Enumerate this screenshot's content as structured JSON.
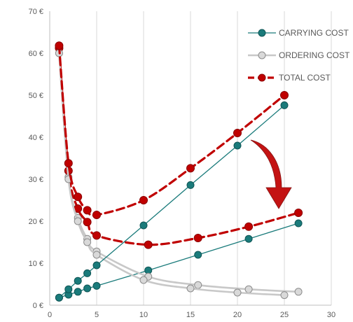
{
  "chart_data": {
    "type": "line",
    "title": "",
    "xlabel": "",
    "ylabel": "",
    "xlim": [
      0,
      30
    ],
    "ylim": [
      0,
      70
    ],
    "x_ticks": [
      {
        "value": 0,
        "label": "0"
      },
      {
        "value": 5,
        "label": "5"
      },
      {
        "value": 10,
        "label": "10"
      },
      {
        "value": 15,
        "label": "15"
      },
      {
        "value": 20,
        "label": "20"
      },
      {
        "value": 25,
        "label": "25"
      },
      {
        "value": 30,
        "label": "30"
      }
    ],
    "y_ticks": [
      {
        "value": 0,
        "label": "0 €"
      },
      {
        "value": 10,
        "label": "10 €"
      },
      {
        "value": 20,
        "label": "20 €"
      },
      {
        "value": 30,
        "label": "30 €"
      },
      {
        "value": 40,
        "label": "40 €"
      },
      {
        "value": 50,
        "label": "50 €"
      },
      {
        "value": 60,
        "label": "60 €"
      },
      {
        "value": 70,
        "label": "70 €"
      }
    ],
    "grid": {
      "x": true,
      "y": false
    },
    "legend_position": "top-right",
    "series": [
      {
        "name": "CARRYING COST",
        "color": "#1a7b7b",
        "style": "solid",
        "points": [
          [
            1,
            1.8
          ],
          [
            2,
            3.8
          ],
          [
            3,
            5.8
          ],
          [
            4,
            7.6
          ],
          [
            5,
            9.5
          ],
          [
            10,
            19
          ],
          [
            15,
            28.6
          ],
          [
            20,
            38
          ],
          [
            25,
            47.6
          ]
        ]
      },
      {
        "name": "ORDERING COST",
        "color": "#bfbfbf",
        "style": "solid",
        "points": [
          [
            1,
            60
          ],
          [
            2,
            30
          ],
          [
            3,
            20
          ],
          [
            4,
            15
          ],
          [
            5,
            12
          ],
          [
            10,
            6
          ],
          [
            15,
            4
          ],
          [
            20,
            3
          ],
          [
            25,
            2.4
          ]
        ]
      },
      {
        "name": "TOTAL COST",
        "color": "#c00000",
        "style": "dashed",
        "points": [
          [
            1,
            61.8
          ],
          [
            2,
            33.8
          ],
          [
            3,
            25.8
          ],
          [
            4,
            22.6
          ],
          [
            5,
            21.5
          ],
          [
            10,
            25
          ],
          [
            15,
            32.6
          ],
          [
            20,
            41
          ],
          [
            25,
            50
          ]
        ]
      }
    ],
    "lower_series": [
      {
        "color": "#1a7b7b",
        "style": "solid",
        "points": [
          [
            1,
            1.8
          ],
          [
            2,
            2.5
          ],
          [
            3,
            3.2
          ],
          [
            4,
            4
          ],
          [
            5,
            4.6
          ],
          [
            10.5,
            8.3
          ],
          [
            15.8,
            12
          ],
          [
            21.2,
            15.8
          ],
          [
            26.5,
            19.5
          ]
        ]
      },
      {
        "color": "#bfbfbf",
        "style": "solid",
        "points": [
          [
            1,
            60
          ],
          [
            2,
            30.5
          ],
          [
            3,
            20.8
          ],
          [
            4,
            15.8
          ],
          [
            5,
            12.8
          ],
          [
            10.5,
            6.8
          ],
          [
            15.8,
            4.8
          ],
          [
            21.2,
            3.8
          ],
          [
            26.5,
            3.2
          ]
        ]
      },
      {
        "color": "#c00000",
        "style": "dashed",
        "points": [
          [
            1,
            61.2
          ],
          [
            2,
            32
          ],
          [
            3,
            23
          ],
          [
            4,
            19.8
          ],
          [
            5,
            16.6
          ],
          [
            10.5,
            14.4
          ],
          [
            15.8,
            16
          ],
          [
            21.2,
            18.7
          ],
          [
            26.5,
            22
          ]
        ]
      }
    ],
    "annotation": {
      "shape": "curved-arrow",
      "color": "#c00000"
    }
  }
}
